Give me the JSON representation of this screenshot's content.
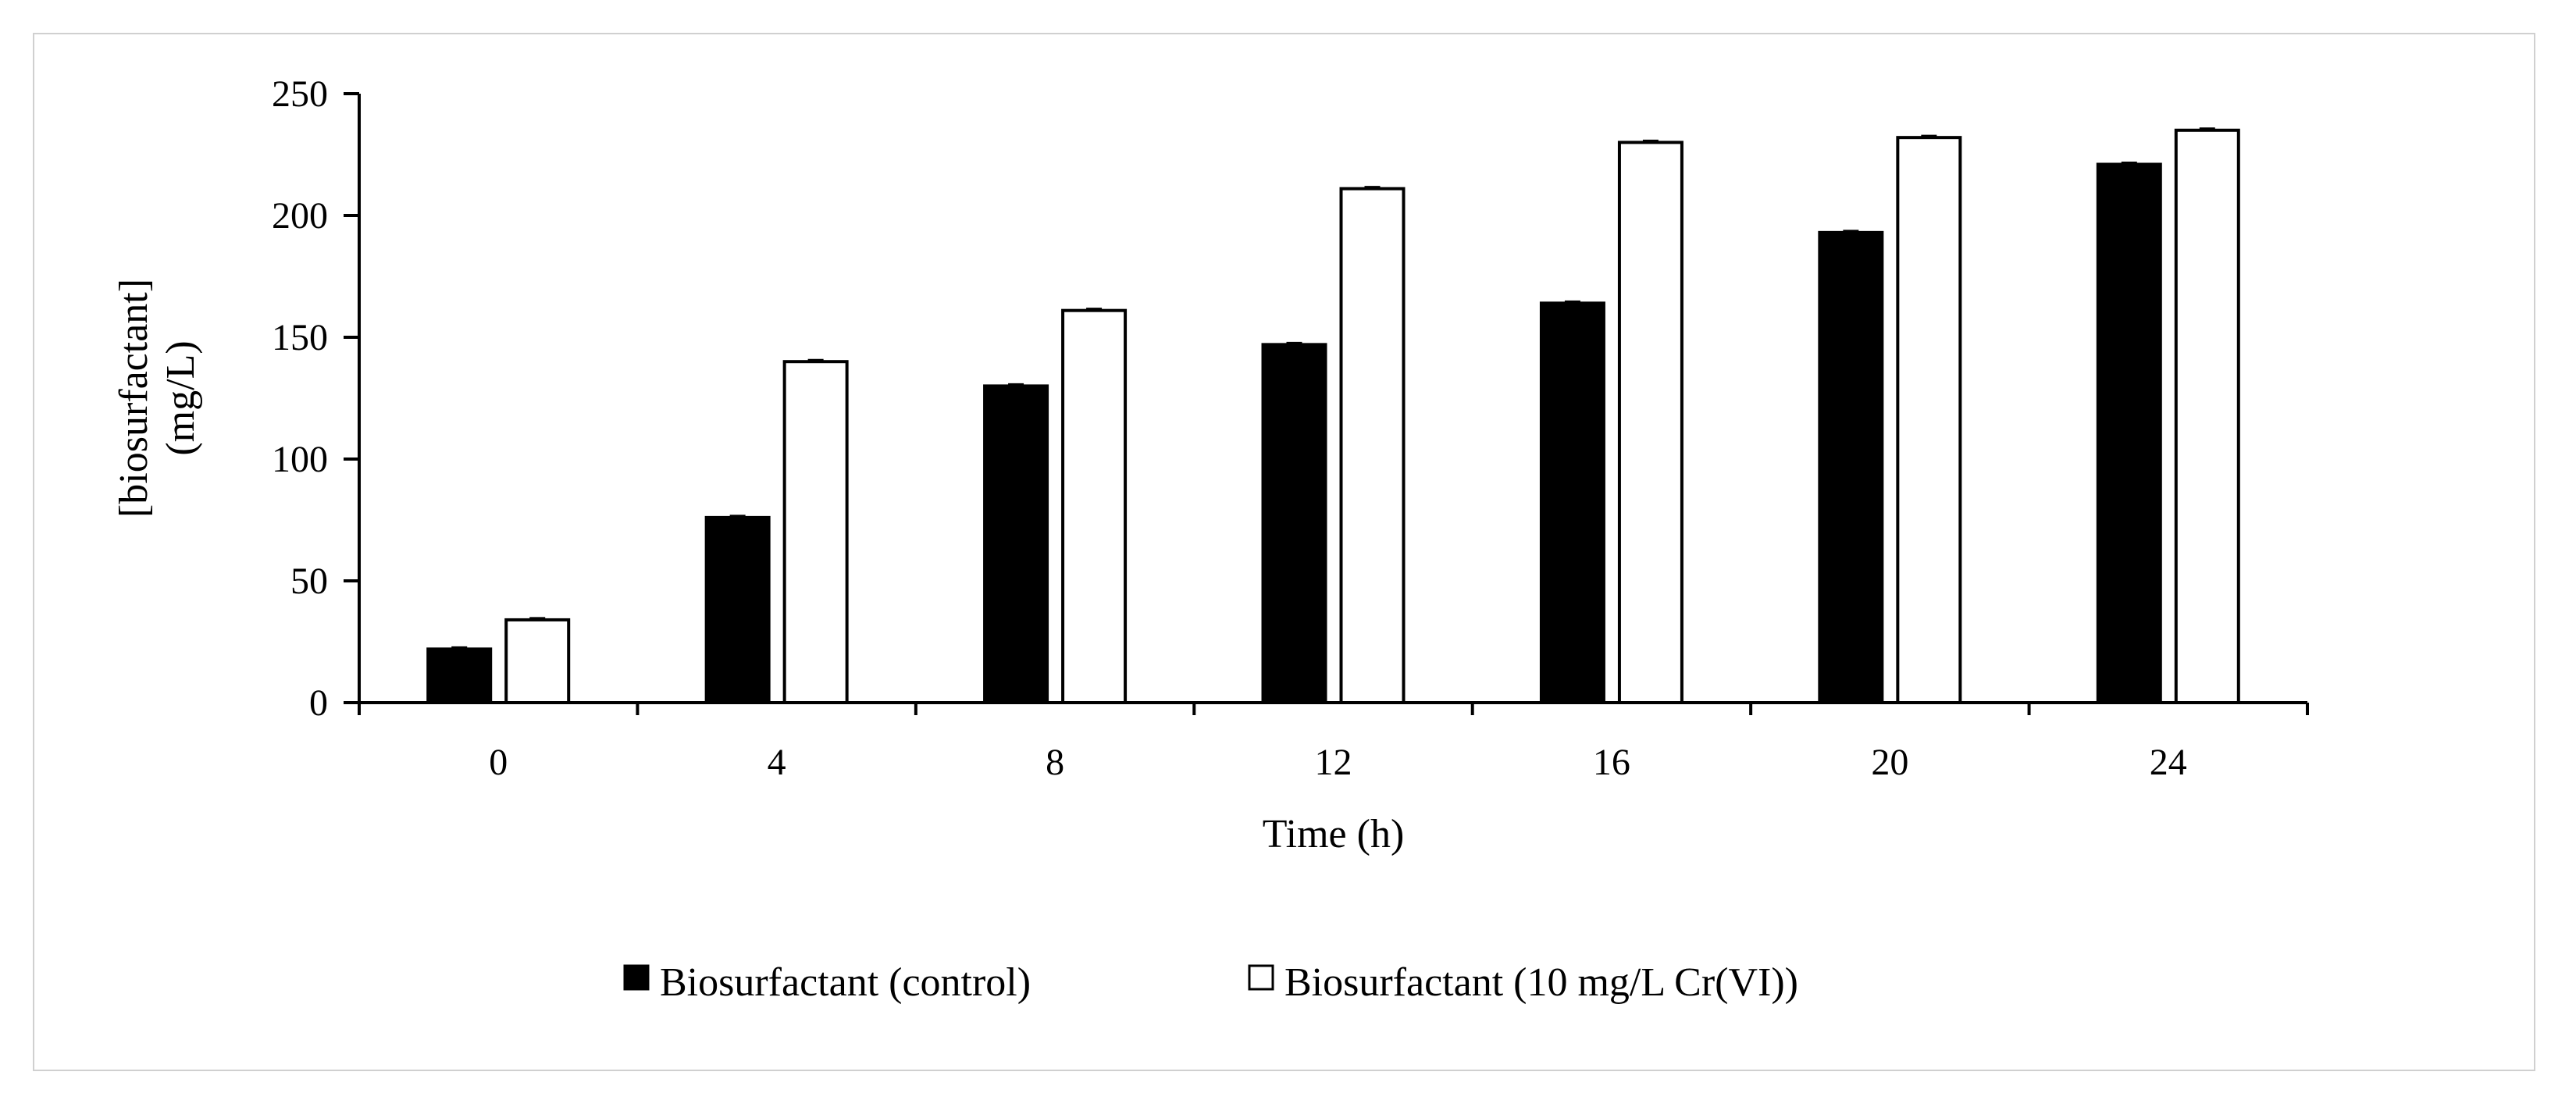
{
  "chart_data": {
    "type": "bar",
    "title": "",
    "xlabel": "Time (h)",
    "ylabel_lines": [
      "[biosurfactant]",
      "(mg/L)"
    ],
    "categories": [
      "0",
      "4",
      "8",
      "12",
      "16",
      "20",
      "24"
    ],
    "series": [
      {
        "name": "Biosurfactant (control)",
        "fill": "#000000",
        "values": [
          22,
          76,
          130,
          147,
          164,
          193,
          221
        ]
      },
      {
        "name": "Biosurfactant (10 mg/L Cr(VI))",
        "fill": "#ffffff",
        "values": [
          34,
          140,
          161,
          211,
          230,
          232,
          235
        ]
      }
    ],
    "ylim": [
      0,
      250
    ],
    "yticks": [
      0,
      50,
      100,
      150,
      200,
      250
    ],
    "ytick_labels": [
      "0",
      "50",
      "100",
      "150",
      "200",
      "250"
    ],
    "grid": false,
    "legend_position": "bottom"
  }
}
